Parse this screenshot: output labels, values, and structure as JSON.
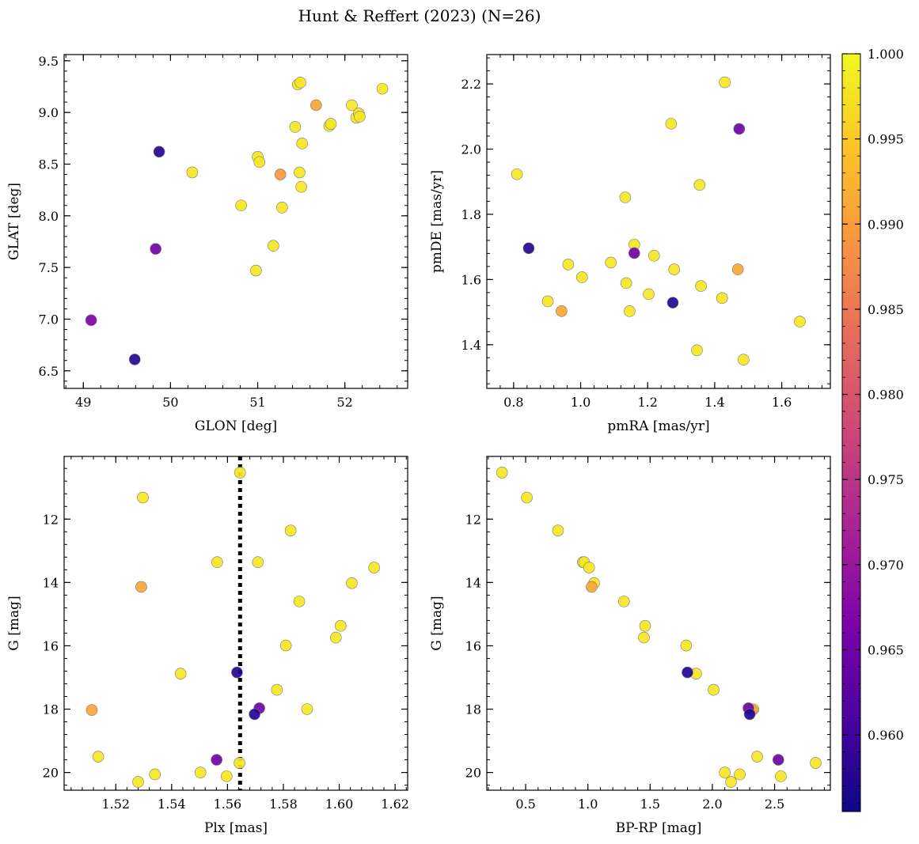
{
  "title": "Hunt & Reffert (2023) (N=26)",
  "colorbar": {
    "min": 0.9555,
    "max": 1.0,
    "ticks": [
      0.96,
      0.965,
      0.97,
      0.975,
      0.98,
      0.985,
      0.99,
      0.995,
      1.0
    ],
    "tick_labels": [
      "0.960",
      "0.965",
      "0.970",
      "0.975",
      "0.980",
      "0.985",
      "0.990",
      "0.995",
      "1.000"
    ],
    "colormap": "plasma"
  },
  "chart_data": [
    {
      "type": "scatter",
      "panel": "top-left",
      "xlabel": "GLON [deg]",
      "ylabel": "GLAT [deg]",
      "xlim": [
        48.78,
        52.72
      ],
      "ylim": [
        6.33,
        9.56
      ],
      "xticks": [
        49,
        50,
        51,
        52
      ],
      "yticks": [
        6.5,
        7.0,
        7.5,
        8.0,
        8.5,
        9.0,
        9.5
      ],
      "xtick_labels": [
        "49",
        "50",
        "51",
        "52"
      ],
      "ytick_labels": [
        "6.5",
        "7.0",
        "7.5",
        "8.0",
        "8.5",
        "9.0",
        "9.5"
      ],
      "points": [
        {
          "x": 49.09,
          "y": 6.99,
          "c": 0.9665
        },
        {
          "x": 49.59,
          "y": 6.61,
          "c": 0.9575
        },
        {
          "x": 49.87,
          "y": 8.62,
          "c": 0.9575
        },
        {
          "x": 49.83,
          "y": 7.68,
          "c": 0.965
        },
        {
          "x": 50.25,
          "y": 8.42,
          "c": 0.998
        },
        {
          "x": 50.81,
          "y": 8.1,
          "c": 0.998
        },
        {
          "x": 50.98,
          "y": 7.47,
          "c": 0.998
        },
        {
          "x": 51.0,
          "y": 8.57,
          "c": 0.998
        },
        {
          "x": 51.02,
          "y": 8.52,
          "c": 0.998
        },
        {
          "x": 51.26,
          "y": 8.4,
          "c": 0.989
        },
        {
          "x": 51.28,
          "y": 8.08,
          "c": 0.998
        },
        {
          "x": 51.18,
          "y": 7.71,
          "c": 0.998
        },
        {
          "x": 51.43,
          "y": 8.86,
          "c": 0.998
        },
        {
          "x": 51.46,
          "y": 9.27,
          "c": 0.998
        },
        {
          "x": 51.49,
          "y": 9.29,
          "c": 0.998
        },
        {
          "x": 51.48,
          "y": 8.42,
          "c": 0.998
        },
        {
          "x": 51.51,
          "y": 8.7,
          "c": 0.998
        },
        {
          "x": 51.5,
          "y": 8.28,
          "c": 0.998
        },
        {
          "x": 51.67,
          "y": 9.07,
          "c": 0.991
        },
        {
          "x": 51.82,
          "y": 8.87,
          "c": 0.998
        },
        {
          "x": 51.84,
          "y": 8.89,
          "c": 0.998
        },
        {
          "x": 52.08,
          "y": 9.07,
          "c": 0.998
        },
        {
          "x": 52.13,
          "y": 8.95,
          "c": 0.998
        },
        {
          "x": 52.16,
          "y": 8.99,
          "c": 0.998
        },
        {
          "x": 52.17,
          "y": 8.96,
          "c": 0.998
        },
        {
          "x": 52.43,
          "y": 9.23,
          "c": 0.998
        }
      ]
    },
    {
      "type": "scatter",
      "panel": "top-right",
      "xlabel": "pmRA [mas/yr]",
      "ylabel": "pmDE [mas/yr]",
      "xlim": [
        0.72,
        1.745
      ],
      "ylim": [
        1.266,
        2.29
      ],
      "xticks": [
        0.8,
        1.0,
        1.2,
        1.4,
        1.6
      ],
      "yticks": [
        1.4,
        1.6,
        1.8,
        2.0,
        2.2
      ],
      "xtick_labels": [
        "0.8",
        "1.0",
        "1.2",
        "1.4",
        "1.6"
      ],
      "ytick_labels": [
        "1.4",
        "1.6",
        "1.8",
        "2.0",
        "2.2"
      ],
      "points": [
        {
          "x": 0.81,
          "y": 1.923,
          "c": 0.998
        },
        {
          "x": 0.845,
          "y": 1.696,
          "c": 0.9575
        },
        {
          "x": 0.902,
          "y": 1.533,
          "c": 0.998
        },
        {
          "x": 0.943,
          "y": 1.503,
          "c": 0.991
        },
        {
          "x": 0.963,
          "y": 1.646,
          "c": 0.998
        },
        {
          "x": 1.004,
          "y": 1.607,
          "c": 0.998
        },
        {
          "x": 1.09,
          "y": 1.652,
          "c": 0.998
        },
        {
          "x": 1.133,
          "y": 1.852,
          "c": 0.998
        },
        {
          "x": 1.136,
          "y": 1.589,
          "c": 0.998
        },
        {
          "x": 1.146,
          "y": 1.503,
          "c": 0.998
        },
        {
          "x": 1.16,
          "y": 1.707,
          "c": 0.998
        },
        {
          "x": 1.16,
          "y": 1.681,
          "c": 0.965
        },
        {
          "x": 1.203,
          "y": 1.555,
          "c": 0.998
        },
        {
          "x": 1.219,
          "y": 1.673,
          "c": 0.998
        },
        {
          "x": 1.27,
          "y": 2.078,
          "c": 0.998
        },
        {
          "x": 1.275,
          "y": 1.529,
          "c": 0.9575
        },
        {
          "x": 1.279,
          "y": 1.631,
          "c": 0.998
        },
        {
          "x": 1.347,
          "y": 1.383,
          "c": 0.998
        },
        {
          "x": 1.355,
          "y": 1.89,
          "c": 0.998
        },
        {
          "x": 1.359,
          "y": 1.58,
          "c": 0.998
        },
        {
          "x": 1.422,
          "y": 1.543,
          "c": 0.998
        },
        {
          "x": 1.43,
          "y": 2.205,
          "c": 0.998
        },
        {
          "x": 1.469,
          "y": 1.631,
          "c": 0.991
        },
        {
          "x": 1.473,
          "y": 2.062,
          "c": 0.965
        },
        {
          "x": 1.486,
          "y": 1.354,
          "c": 0.998
        },
        {
          "x": 1.654,
          "y": 1.471,
          "c": 0.998
        }
      ]
    },
    {
      "type": "scatter",
      "panel": "bottom-left",
      "xlabel": "Plx [mas]",
      "ylabel": "G [mag]",
      "xlim": [
        1.5015,
        1.6245
      ],
      "ylim": [
        20.56,
        10.02
      ],
      "y_inverted": true,
      "xticks": [
        1.52,
        1.54,
        1.56,
        1.58,
        1.6,
        1.62
      ],
      "yticks": [
        12,
        14,
        16,
        18,
        20
      ],
      "xtick_labels": [
        "1.52",
        "1.54",
        "1.56",
        "1.58",
        "1.60",
        "1.62"
      ],
      "ytick_labels": [
        "12",
        "14",
        "16",
        "18",
        "20"
      ],
      "vline": {
        "x": 1.5645,
        "style": "dotted"
      },
      "points": [
        {
          "x": 1.5645,
          "y": 10.53,
          "c": 0.998
        },
        {
          "x": 1.5297,
          "y": 11.32,
          "c": 0.998
        },
        {
          "x": 1.5826,
          "y": 12.36,
          "c": 0.998
        },
        {
          "x": 1.5563,
          "y": 13.36,
          "c": 0.998
        },
        {
          "x": 1.5709,
          "y": 13.36,
          "c": 0.998
        },
        {
          "x": 1.6125,
          "y": 13.53,
          "c": 0.998
        },
        {
          "x": 1.5291,
          "y": 14.14,
          "c": 0.991
        },
        {
          "x": 1.6045,
          "y": 14.02,
          "c": 0.998
        },
        {
          "x": 1.5857,
          "y": 14.6,
          "c": 0.998
        },
        {
          "x": 1.6005,
          "y": 15.37,
          "c": 0.998
        },
        {
          "x": 1.5988,
          "y": 15.74,
          "c": 0.998
        },
        {
          "x": 1.5809,
          "y": 15.99,
          "c": 0.998
        },
        {
          "x": 1.5432,
          "y": 16.88,
          "c": 0.998
        },
        {
          "x": 1.5634,
          "y": 16.84,
          "c": 0.9575
        },
        {
          "x": 1.5777,
          "y": 17.39,
          "c": 0.998
        },
        {
          "x": 1.5714,
          "y": 17.97,
          "c": 0.965
        },
        {
          "x": 1.5697,
          "y": 18.16,
          "c": 0.9575
        },
        {
          "x": 1.5114,
          "y": 18.03,
          "c": 0.991
        },
        {
          "x": 1.5885,
          "y": 18.0,
          "c": 0.998
        },
        {
          "x": 1.5137,
          "y": 19.5,
          "c": 0.998
        },
        {
          "x": 1.5561,
          "y": 19.6,
          "c": 0.965
        },
        {
          "x": 1.5643,
          "y": 19.7,
          "c": 0.998
        },
        {
          "x": 1.5503,
          "y": 20.0,
          "c": 0.998
        },
        {
          "x": 1.534,
          "y": 20.06,
          "c": 0.998
        },
        {
          "x": 1.5597,
          "y": 20.12,
          "c": 0.998
        },
        {
          "x": 1.528,
          "y": 20.3,
          "c": 0.998
        }
      ]
    },
    {
      "type": "scatter",
      "panel": "bottom-right",
      "xlabel": "BP-RP [mag]",
      "ylabel": "G [mag]",
      "xlim": [
        0.188,
        2.948
      ],
      "ylim": [
        20.56,
        10.02
      ],
      "y_inverted": true,
      "xticks": [
        0.5,
        1.0,
        1.5,
        2.0,
        2.5
      ],
      "yticks": [
        12,
        14,
        16,
        18,
        20
      ],
      "xtick_labels": [
        "0.5",
        "1.0",
        "1.5",
        "2.0",
        "2.5"
      ],
      "ytick_labels": [
        "12",
        "14",
        "16",
        "18",
        "20"
      ],
      "points": [
        {
          "x": 0.31,
          "y": 10.53,
          "c": 0.998
        },
        {
          "x": 0.51,
          "y": 11.32,
          "c": 0.998
        },
        {
          "x": 0.76,
          "y": 12.36,
          "c": 0.998
        },
        {
          "x": 0.96,
          "y": 13.36,
          "c": 0.998
        },
        {
          "x": 0.97,
          "y": 13.36,
          "c": 0.998
        },
        {
          "x": 1.01,
          "y": 13.53,
          "c": 0.998
        },
        {
          "x": 1.03,
          "y": 14.14,
          "c": 0.991
        },
        {
          "x": 1.05,
          "y": 14.02,
          "c": 0.998
        },
        {
          "x": 1.29,
          "y": 14.6,
          "c": 0.998
        },
        {
          "x": 1.46,
          "y": 15.37,
          "c": 0.998
        },
        {
          "x": 1.45,
          "y": 15.74,
          "c": 0.998
        },
        {
          "x": 1.79,
          "y": 15.99,
          "c": 0.998
        },
        {
          "x": 1.8,
          "y": 16.84,
          "c": 0.9575
        },
        {
          "x": 1.87,
          "y": 16.88,
          "c": 0.998
        },
        {
          "x": 2.01,
          "y": 17.39,
          "c": 0.998
        },
        {
          "x": 2.29,
          "y": 17.97,
          "c": 0.965
        },
        {
          "x": 2.3,
          "y": 18.16,
          "c": 0.9575
        },
        {
          "x": 2.32,
          "y": 18.03,
          "c": 0.991
        },
        {
          "x": 2.33,
          "y": 18.0,
          "c": 0.998
        },
        {
          "x": 2.36,
          "y": 19.5,
          "c": 0.998
        },
        {
          "x": 2.53,
          "y": 19.6,
          "c": 0.965
        },
        {
          "x": 2.83,
          "y": 19.7,
          "c": 0.998
        },
        {
          "x": 2.1,
          "y": 20.0,
          "c": 0.998
        },
        {
          "x": 2.22,
          "y": 20.06,
          "c": 0.998
        },
        {
          "x": 2.55,
          "y": 20.12,
          "c": 0.998
        },
        {
          "x": 2.15,
          "y": 20.3,
          "c": 0.998
        }
      ]
    }
  ]
}
